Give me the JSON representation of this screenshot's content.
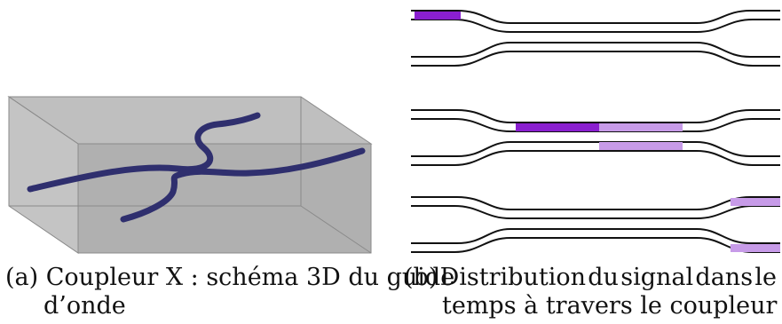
{
  "figure_a": {
    "label": "(a)",
    "caption_line1": "Coupleur X : schéma 3D du guide",
    "caption_line2": "d’onde",
    "colors": {
      "substrate": "#9a9a9a",
      "waveguide": "#2f2f6e"
    }
  },
  "figure_b": {
    "label": "(b)",
    "caption_words_line1": [
      "Distribution",
      "du",
      "signal",
      "dans",
      "le"
    ],
    "caption_line2": "temps à travers le coupleur",
    "colors": {
      "signal_strong": "#8a1fd0",
      "signal_weak": "#c79be8",
      "guide_line": "#111111"
    },
    "panels": [
      {
        "name": "input-pulse"
      },
      {
        "name": "coupling-region"
      },
      {
        "name": "output-split"
      }
    ]
  }
}
